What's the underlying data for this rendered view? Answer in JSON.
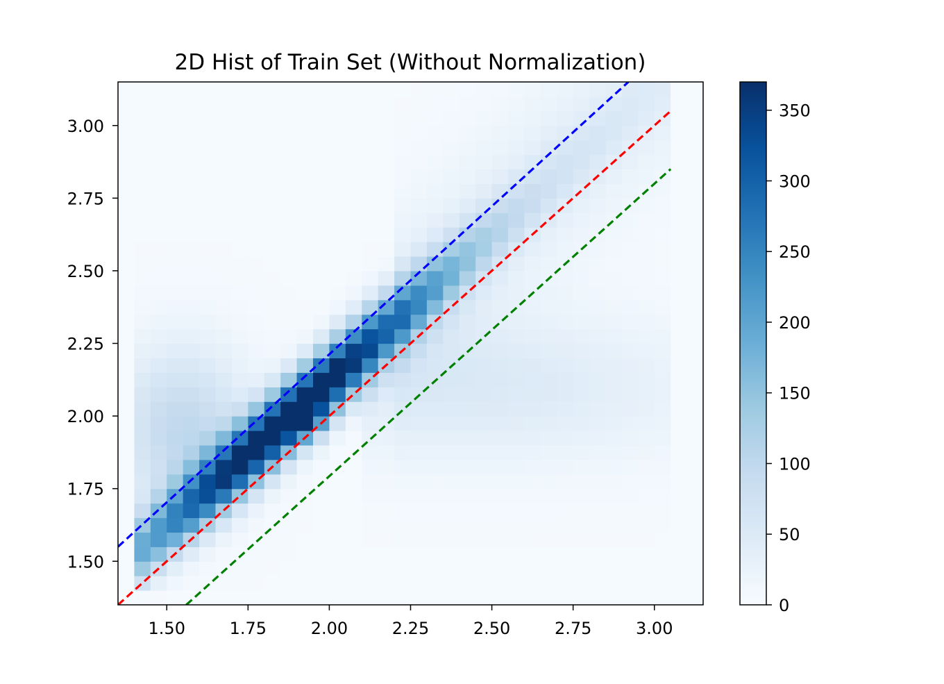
{
  "chart_data": {
    "type": "heatmap",
    "title": "2D Hist of Train Set (Without Normalization)",
    "xlabel": "",
    "ylabel": "",
    "xlim": [
      1.35,
      3.15
    ],
    "ylim": [
      1.35,
      3.15
    ],
    "x_ticks": [
      1.5,
      1.75,
      2.0,
      2.25,
      2.5,
      2.75,
      3.0
    ],
    "x_tick_labels": [
      "1.50",
      "1.75",
      "2.00",
      "2.25",
      "2.50",
      "2.75",
      "3.00"
    ],
    "y_ticks": [
      1.5,
      1.75,
      2.0,
      2.25,
      2.5,
      2.75,
      3.0
    ],
    "y_tick_labels": [
      "1.50",
      "1.75",
      "2.00",
      "2.25",
      "2.50",
      "2.75",
      "3.00"
    ],
    "grid": false,
    "colormap": "Blues",
    "colorbar": {
      "min": 0,
      "max": 370,
      "ticks": [
        0,
        50,
        100,
        150,
        200,
        250,
        300,
        350
      ],
      "tick_labels": [
        "0",
        "50",
        "100",
        "150",
        "200",
        "250",
        "300",
        "350"
      ]
    },
    "bins": {
      "x_start": 1.35,
      "x_end": 3.15,
      "y_start": 1.35,
      "y_end": 3.15,
      "count": 36
    },
    "lines": [
      {
        "color": "#0000ff",
        "style": "dashed",
        "x": [
          1.35,
          2.92
        ],
        "y": [
          1.55,
          3.15
        ]
      },
      {
        "color": "#ff0000",
        "style": "dashed",
        "x": [
          1.35,
          3.05
        ],
        "y": [
          1.35,
          3.05
        ]
      },
      {
        "color": "#008000",
        "style": "dashed",
        "x": [
          1.56,
          3.05
        ],
        "y": [
          1.35,
          2.85
        ]
      }
    ]
  },
  "colors": {
    "background": "#ffffff",
    "axes": "#000000",
    "cmap_low": "#f7fbff",
    "cmap_high": "#08306b"
  }
}
